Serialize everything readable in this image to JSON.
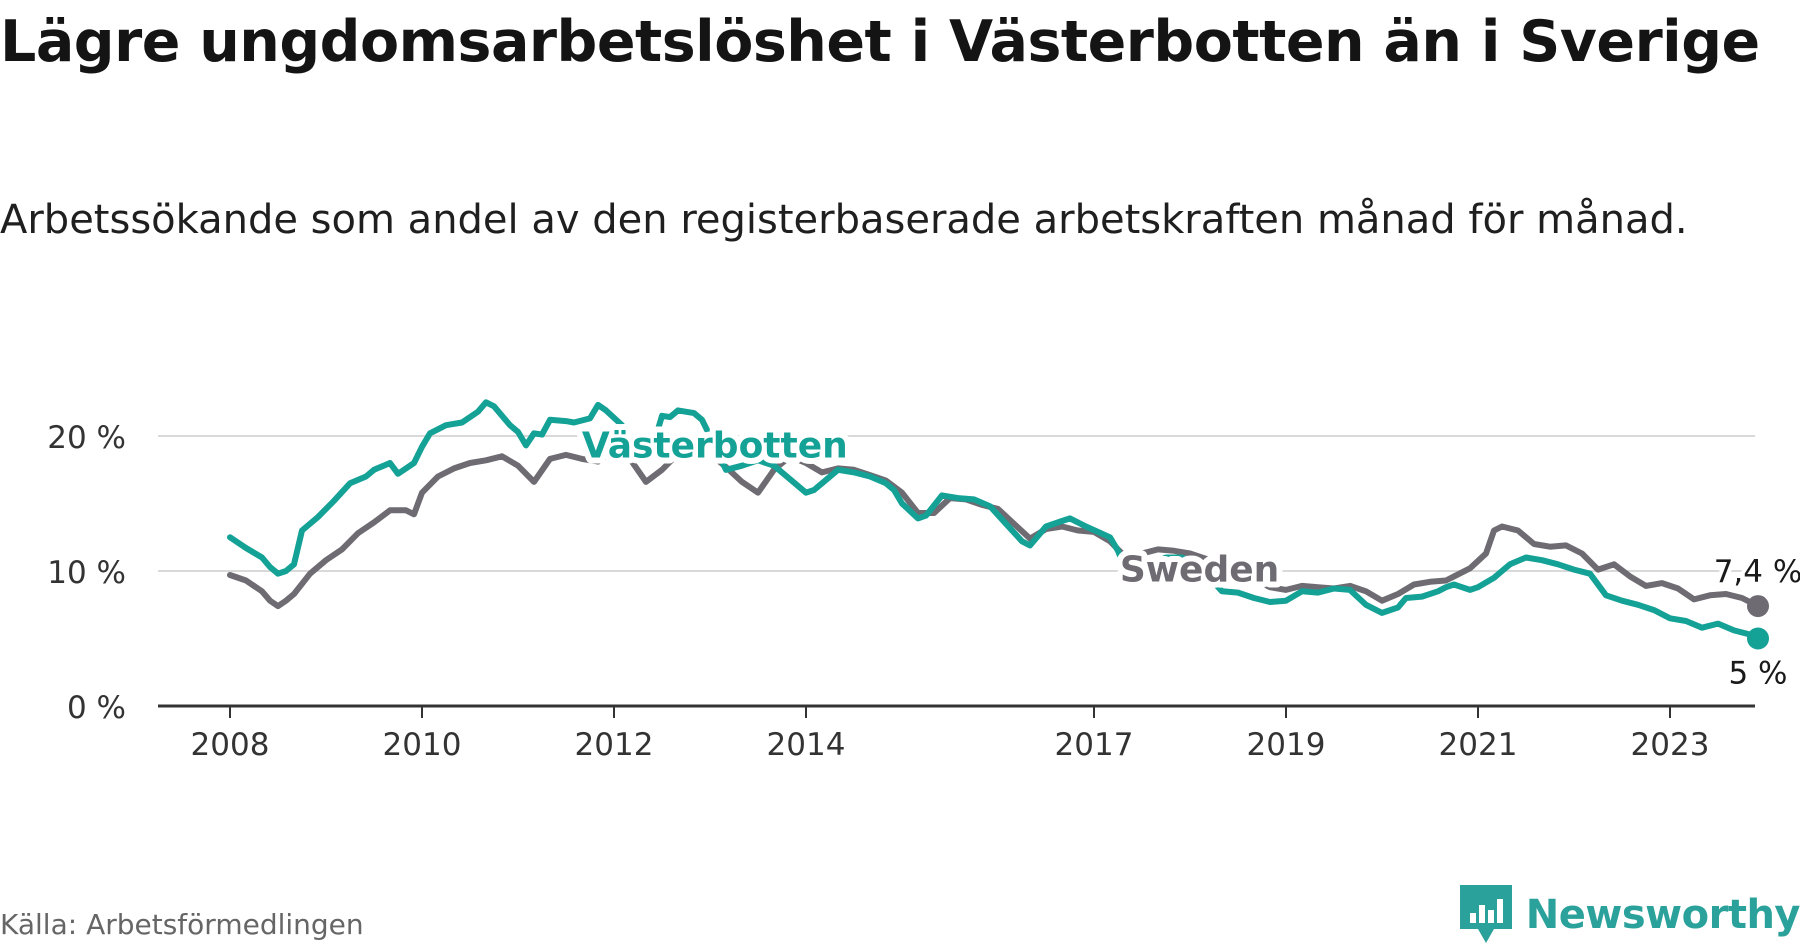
{
  "title": "Lägre ungdomsarbetslöshet i Västerbotten än i Sverige",
  "subtitle": "Arbetssökande som andel av den registerbaserade arbetskraften månad för månad.",
  "source": "Källa: Arbetsförmedlingen",
  "brand": {
    "name": "Newsworthy",
    "icon": "newsworthy-logo-icon"
  },
  "colors": {
    "vasterbotten": "#14a196",
    "sweden": "#6e6c72",
    "grid": "#d9d9d9",
    "axis": "#333333"
  },
  "chart_data": {
    "type": "line",
    "title": "Lägre ungdomsarbetslöshet i Västerbotten än i Sverige",
    "x_tick_labels": [
      "2008",
      "2010",
      "2012",
      "2014",
      "2017",
      "2019",
      "2021",
      "2023"
    ],
    "x_range": [
      "2008-01",
      "2023-12"
    ],
    "y_ticks": [
      0,
      10,
      20
    ],
    "y_tick_labels": [
      "0 %",
      "10 %",
      "20 %"
    ],
    "ylim": [
      0,
      20
    ],
    "grid": true,
    "end_labels": {
      "sweden": "7,4 %",
      "vasterbotten": "5 %"
    },
    "series": [
      {
        "name": "Västerbotten",
        "key": "vasterbotten",
        "points": [
          [
            "2008-01",
            12.5
          ],
          [
            "2008-03",
            11.7
          ],
          [
            "2008-05",
            11.0
          ],
          [
            "2008-06",
            10.3
          ],
          [
            "2008-07",
            9.8
          ],
          [
            "2008-08",
            10.0
          ],
          [
            "2008-09",
            10.5
          ],
          [
            "2008-10",
            13.0
          ],
          [
            "2008-12",
            14.0
          ],
          [
            "2009-02",
            15.2
          ],
          [
            "2009-04",
            16.5
          ],
          [
            "2009-06",
            17.0
          ],
          [
            "2009-07",
            17.5
          ],
          [
            "2009-09",
            18.0
          ],
          [
            "2009-10",
            17.2
          ],
          [
            "2009-12",
            18.0
          ],
          [
            "2010-01",
            19.2
          ],
          [
            "2010-02",
            20.2
          ],
          [
            "2010-04",
            20.8
          ],
          [
            "2010-06",
            21.0
          ],
          [
            "2010-08",
            21.8
          ],
          [
            "2010-09",
            22.5
          ],
          [
            "2010-10",
            22.2
          ],
          [
            "2010-12",
            20.8
          ],
          [
            "2011-01",
            20.3
          ],
          [
            "2011-02",
            19.3
          ],
          [
            "2011-03",
            20.2
          ],
          [
            "2011-04",
            20.1
          ],
          [
            "2011-05",
            21.2
          ],
          [
            "2011-07",
            21.1
          ],
          [
            "2011-08",
            21.0
          ],
          [
            "2011-10",
            21.3
          ],
          [
            "2011-11",
            22.3
          ],
          [
            "2011-12",
            21.9
          ],
          [
            "2012-02",
            20.8
          ],
          [
            "2012-03",
            19.5
          ],
          [
            "2012-04",
            18.4
          ],
          [
            "2012-06",
            19.5
          ],
          [
            "2012-07",
            21.5
          ],
          [
            "2012-08",
            21.4
          ],
          [
            "2012-09",
            21.9
          ],
          [
            "2012-11",
            21.7
          ],
          [
            "2012-12",
            21.2
          ],
          [
            "2013-01",
            20.0
          ],
          [
            "2013-02",
            18.7
          ],
          [
            "2013-03",
            17.5
          ],
          [
            "2013-05",
            17.8
          ],
          [
            "2013-07",
            18.2
          ],
          [
            "2013-09",
            17.8
          ],
          [
            "2013-11",
            16.8
          ],
          [
            "2013-12",
            16.3
          ],
          [
            "2014-01",
            15.8
          ],
          [
            "2014-02",
            16.0
          ],
          [
            "2014-03",
            16.5
          ],
          [
            "2014-05",
            17.5
          ],
          [
            "2014-07",
            17.3
          ],
          [
            "2014-09",
            17.0
          ],
          [
            "2014-11",
            16.5
          ],
          [
            "2014-12",
            16.0
          ],
          [
            "2015-01",
            15.0
          ],
          [
            "2015-03",
            13.9
          ],
          [
            "2015-04",
            14.1
          ],
          [
            "2015-06",
            15.6
          ],
          [
            "2015-08",
            15.4
          ],
          [
            "2015-10",
            15.3
          ],
          [
            "2015-12",
            14.8
          ],
          [
            "2016-02",
            13.5
          ],
          [
            "2016-04",
            12.2
          ],
          [
            "2016-05",
            11.9
          ],
          [
            "2016-07",
            13.3
          ],
          [
            "2016-09",
            13.7
          ],
          [
            "2016-10",
            13.9
          ],
          [
            "2016-12",
            13.3
          ],
          [
            "2017-03",
            12.5
          ],
          [
            "2017-04",
            11.5
          ],
          [
            "2017-05",
            10.0
          ],
          [
            "2017-06",
            9.8
          ],
          [
            "2017-08",
            10.5
          ],
          [
            "2017-10",
            11.0
          ],
          [
            "2017-12",
            11.0
          ],
          [
            "2018-01",
            10.7
          ],
          [
            "2018-02",
            10.6
          ],
          [
            "2018-03",
            9.8
          ],
          [
            "2018-05",
            8.5
          ],
          [
            "2018-07",
            8.4
          ],
          [
            "2018-09",
            8.0
          ],
          [
            "2018-11",
            7.7
          ],
          [
            "2019-01",
            7.8
          ],
          [
            "2019-03",
            8.5
          ],
          [
            "2019-05",
            8.4
          ],
          [
            "2019-07",
            8.7
          ],
          [
            "2019-09",
            8.6
          ],
          [
            "2019-11",
            7.5
          ],
          [
            "2020-01",
            6.9
          ],
          [
            "2020-03",
            7.3
          ],
          [
            "2020-04",
            8.0
          ],
          [
            "2020-06",
            8.1
          ],
          [
            "2020-08",
            8.5
          ],
          [
            "2020-09",
            8.8
          ],
          [
            "2020-10",
            9.0
          ],
          [
            "2020-11",
            8.8
          ],
          [
            "2020-12",
            8.6
          ],
          [
            "2021-01",
            8.8
          ],
          [
            "2021-03",
            9.5
          ],
          [
            "2021-04",
            10.0
          ],
          [
            "2021-05",
            10.5
          ],
          [
            "2021-07",
            11.0
          ],
          [
            "2021-09",
            10.8
          ],
          [
            "2021-11",
            10.5
          ],
          [
            "2022-01",
            10.1
          ],
          [
            "2022-03",
            9.8
          ],
          [
            "2022-05",
            8.2
          ],
          [
            "2022-07",
            7.8
          ],
          [
            "2022-09",
            7.5
          ],
          [
            "2022-11",
            7.1
          ],
          [
            "2023-01",
            6.5
          ],
          [
            "2023-03",
            6.3
          ],
          [
            "2023-05",
            5.8
          ],
          [
            "2023-07",
            6.1
          ],
          [
            "2023-09",
            5.6
          ],
          [
            "2023-11",
            5.3
          ],
          [
            "2023-12",
            5.0
          ]
        ]
      },
      {
        "name": "Sweden",
        "key": "sweden",
        "points": [
          [
            "2008-01",
            9.7
          ],
          [
            "2008-03",
            9.3
          ],
          [
            "2008-05",
            8.5
          ],
          [
            "2008-06",
            7.8
          ],
          [
            "2008-07",
            7.4
          ],
          [
            "2008-08",
            7.8
          ],
          [
            "2008-09",
            8.3
          ],
          [
            "2008-11",
            9.8
          ],
          [
            "2009-01",
            10.8
          ],
          [
            "2009-03",
            11.6
          ],
          [
            "2009-05",
            12.8
          ],
          [
            "2009-07",
            13.6
          ],
          [
            "2009-09",
            14.5
          ],
          [
            "2009-11",
            14.5
          ],
          [
            "2009-12",
            14.2
          ],
          [
            "2010-01",
            15.8
          ],
          [
            "2010-03",
            17.0
          ],
          [
            "2010-05",
            17.6
          ],
          [
            "2010-07",
            18.0
          ],
          [
            "2010-09",
            18.2
          ],
          [
            "2010-11",
            18.5
          ],
          [
            "2011-01",
            17.8
          ],
          [
            "2011-03",
            16.6
          ],
          [
            "2011-05",
            18.3
          ],
          [
            "2011-07",
            18.6
          ],
          [
            "2011-09",
            18.3
          ],
          [
            "2011-11",
            18.1
          ],
          [
            "2012-01",
            19.0
          ],
          [
            "2012-03",
            18.3
          ],
          [
            "2012-05",
            16.6
          ],
          [
            "2012-07",
            17.5
          ],
          [
            "2012-09",
            18.7
          ],
          [
            "2012-11",
            19.1
          ],
          [
            "2013-01",
            18.7
          ],
          [
            "2013-03",
            17.7
          ],
          [
            "2013-05",
            16.6
          ],
          [
            "2013-07",
            15.8
          ],
          [
            "2013-09",
            17.5
          ],
          [
            "2013-11",
            18.5
          ],
          [
            "2014-01",
            18.0
          ],
          [
            "2014-03",
            17.3
          ],
          [
            "2014-05",
            17.6
          ],
          [
            "2014-07",
            17.5
          ],
          [
            "2014-09",
            17.1
          ],
          [
            "2014-11",
            16.7
          ],
          [
            "2015-01",
            15.8
          ],
          [
            "2015-03",
            14.3
          ],
          [
            "2015-05",
            14.3
          ],
          [
            "2015-07",
            15.4
          ],
          [
            "2015-09",
            15.3
          ],
          [
            "2015-11",
            14.9
          ],
          [
            "2016-01",
            14.6
          ],
          [
            "2016-03",
            13.5
          ],
          [
            "2016-05",
            12.4
          ],
          [
            "2016-07",
            13.1
          ],
          [
            "2016-09",
            13.3
          ],
          [
            "2016-11",
            13.0
          ],
          [
            "2017-01",
            12.9
          ],
          [
            "2017-03",
            12.2
          ],
          [
            "2017-05",
            11.0
          ],
          [
            "2017-07",
            11.3
          ],
          [
            "2017-09",
            11.6
          ],
          [
            "2017-11",
            11.5
          ],
          [
            "2018-01",
            11.3
          ],
          [
            "2018-03",
            10.9
          ],
          [
            "2018-05",
            10.0
          ],
          [
            "2018-07",
            9.8
          ],
          [
            "2018-09",
            9.4
          ],
          [
            "2018-11",
            8.8
          ],
          [
            "2019-01",
            8.6
          ],
          [
            "2019-03",
            8.9
          ],
          [
            "2019-05",
            8.8
          ],
          [
            "2019-07",
            8.7
          ],
          [
            "2019-09",
            8.9
          ],
          [
            "2019-11",
            8.5
          ],
          [
            "2020-01",
            7.8
          ],
          [
            "2020-03",
            8.3
          ],
          [
            "2020-05",
            9.0
          ],
          [
            "2020-07",
            9.2
          ],
          [
            "2020-09",
            9.3
          ],
          [
            "2020-10",
            9.6
          ],
          [
            "2020-12",
            10.2
          ],
          [
            "2021-02",
            11.3
          ],
          [
            "2021-03",
            13.0
          ],
          [
            "2021-04",
            13.3
          ],
          [
            "2021-06",
            13.0
          ],
          [
            "2021-08",
            12.0
          ],
          [
            "2021-10",
            11.8
          ],
          [
            "2021-12",
            11.9
          ],
          [
            "2022-02",
            11.3
          ],
          [
            "2022-04",
            10.1
          ],
          [
            "2022-06",
            10.5
          ],
          [
            "2022-08",
            9.6
          ],
          [
            "2022-10",
            8.9
          ],
          [
            "2022-12",
            9.1
          ],
          [
            "2023-02",
            8.7
          ],
          [
            "2023-04",
            7.9
          ],
          [
            "2023-06",
            8.2
          ],
          [
            "2023-08",
            8.3
          ],
          [
            "2023-10",
            8.0
          ],
          [
            "2023-12",
            7.4
          ]
        ]
      }
    ]
  }
}
